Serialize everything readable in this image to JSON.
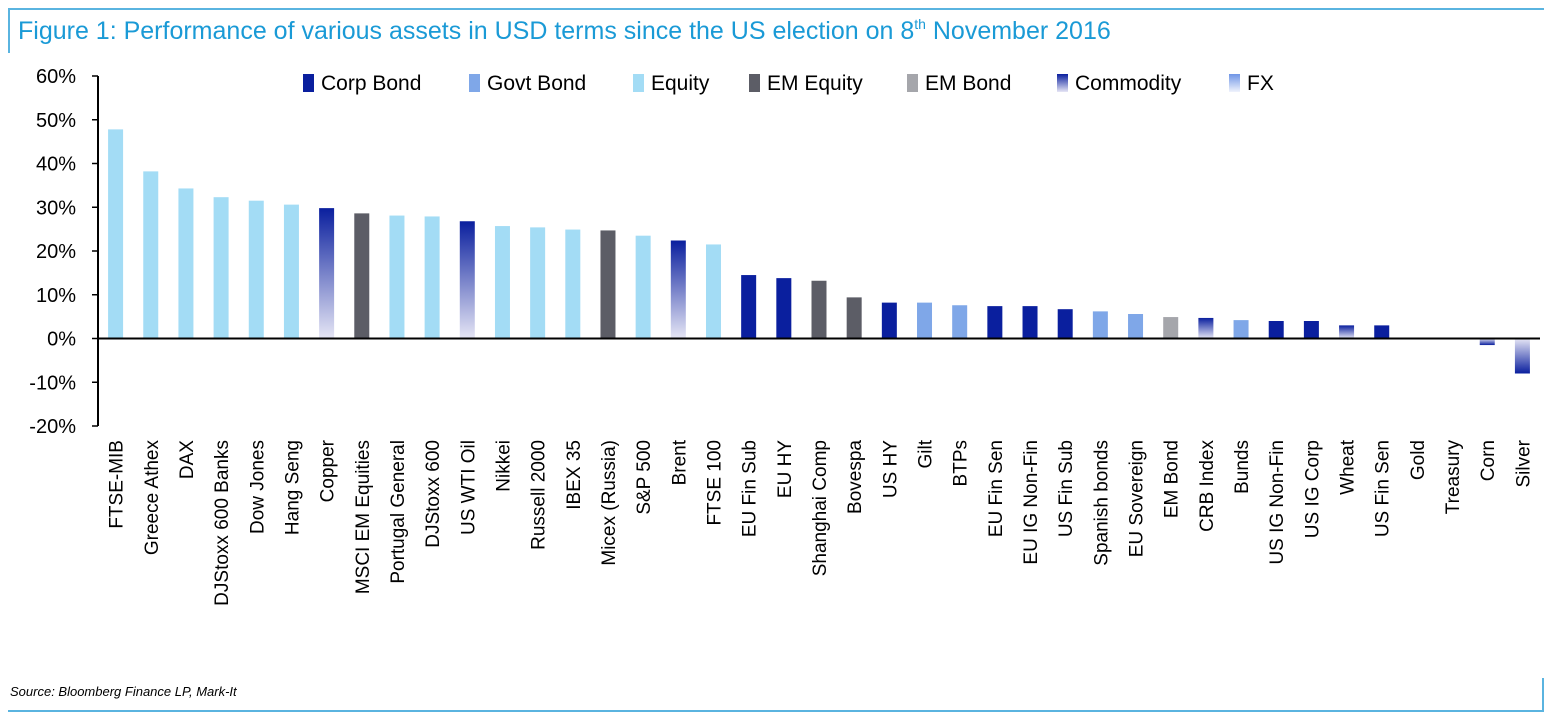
{
  "figure": {
    "title_prefix": "Figure 1: Performance of various assets in USD terms since the US election on 8",
    "title_sup": "th",
    "title_suffix": " November 2016",
    "source": "Source: Bloomberg Finance LP, Mark-It"
  },
  "colors": {
    "title": "#1a9ad6",
    "frame": "#5ab4e0",
    "Corp Bond": "#0a1f9e",
    "Govt Bond": "#7fa7e8",
    "Equity": "#a3dcf5",
    "EM Equity": "#5c5d66",
    "EM Bond": "#a5a6ab",
    "Commodity": "#0a1f9e",
    "FX": "#6f95e6"
  },
  "chart_data": {
    "type": "bar",
    "title": "",
    "xlabel": "",
    "ylabel": "",
    "ylim": [
      -20,
      60
    ],
    "yticks": [
      60,
      50,
      40,
      30,
      20,
      10,
      0,
      -10,
      -20
    ],
    "ytick_labels": [
      "60%",
      "50%",
      "40%",
      "30%",
      "20%",
      "10%",
      "0%",
      "-10%",
      "-20%"
    ],
    "legend_position": "top",
    "legend": [
      "Corp Bond",
      "Govt Bond",
      "Equity",
      "EM Equity",
      "EM Bond",
      "Commodity",
      "FX"
    ],
    "categories": [
      "FTSE-MIB",
      "Greece Athex",
      "DAX",
      "DJStoxx 600 Banks",
      "Dow Jones",
      "Hang Seng",
      "Copper",
      "MSCI EM Equities",
      "Portugal General",
      "DJStoxx 600",
      "US WTI Oil",
      "Nikkei",
      "Russell 2000",
      "IBEX 35",
      "Micex (Russia)",
      "S&P 500",
      "Brent",
      "FTSE 100",
      "EU Fin Sub",
      "EU HY",
      "Shanghai Comp",
      "Bovespa",
      "US HY",
      "Gilt",
      "BTPs",
      "EU Fin Sen",
      "EU IG Non-Fin",
      "US Fin Sub",
      "Spanish bonds",
      "EU Sovereign",
      "EM Bond",
      "CRB Index",
      "Bunds",
      "US IG Non-Fin",
      "US IG Corp",
      "Wheat",
      "US Fin Sen",
      "Gold",
      "Treasury",
      "Corn",
      "Silver"
    ],
    "values": [
      47.8,
      38.2,
      34.3,
      32.3,
      31.5,
      30.6,
      29.8,
      28.6,
      28.1,
      27.9,
      26.8,
      25.7,
      25.4,
      24.9,
      24.7,
      23.5,
      22.4,
      21.5,
      14.5,
      13.8,
      13.2,
      9.4,
      8.2,
      8.2,
      7.6,
      7.4,
      7.4,
      6.7,
      6.2,
      5.6,
      4.9,
      4.7,
      4.2,
      4.0,
      4.0,
      3.0,
      3.0,
      0.0,
      0.0,
      -1.5,
      -8.0
    ],
    "asset_class": [
      "Equity",
      "Equity",
      "Equity",
      "Equity",
      "Equity",
      "Equity",
      "Commodity",
      "EM Equity",
      "Equity",
      "Equity",
      "Commodity",
      "Equity",
      "Equity",
      "Equity",
      "EM Equity",
      "Equity",
      "Commodity",
      "Equity",
      "Corp Bond",
      "Corp Bond",
      "EM Equity",
      "EM Equity",
      "Corp Bond",
      "Govt Bond",
      "Govt Bond",
      "Corp Bond",
      "Corp Bond",
      "Corp Bond",
      "Govt Bond",
      "Govt Bond",
      "EM Bond",
      "Commodity",
      "Govt Bond",
      "Corp Bond",
      "Corp Bond",
      "Commodity",
      "Corp Bond",
      "Commodity",
      "Govt Bond",
      "Commodity",
      "Commodity"
    ]
  }
}
